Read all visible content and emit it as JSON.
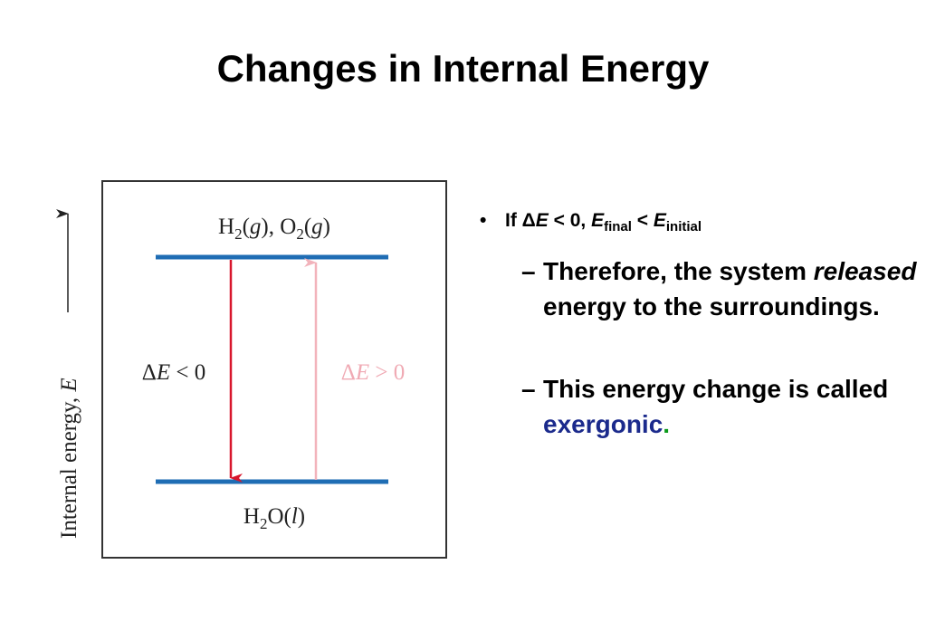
{
  "title": "Changes in Internal Energy",
  "diagram": {
    "y_axis_label": [
      "Internal energy, ",
      "E"
    ],
    "top_level": [
      "H",
      "2",
      "(",
      "g",
      "), O",
      "2",
      "(",
      "g",
      ")"
    ],
    "bottom_level": [
      "H",
      "2",
      "O(",
      "l",
      ")"
    ],
    "left_arrow": [
      "Δ",
      "E",
      " < 0"
    ],
    "right_arrow": [
      "Δ",
      "E",
      " > 0"
    ]
  },
  "bullets": [
    {
      "marker": "•",
      "segments": [
        "If ",
        "Δ",
        "E",
        " < 0, ",
        "E",
        "final",
        " < ",
        "E",
        "initial"
      ],
      "subbullets": [
        {
          "marker": "–",
          "segments": [
            "Therefore, the system ",
            "released",
            " energy to the surroundings."
          ]
        },
        {
          "marker": "–",
          "segments": [
            "This energy change is called ",
            "exergonic",
            "."
          ]
        }
      ]
    }
  ]
}
